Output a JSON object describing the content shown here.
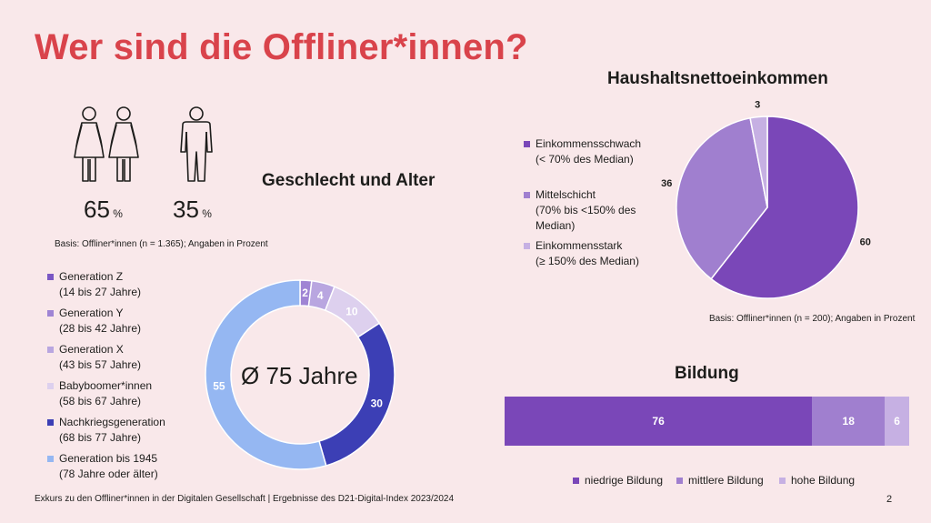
{
  "title": "Wer sind die Offliner*innen?",
  "gender": {
    "title": "Geschlecht und Alter",
    "female_value": "65",
    "male_value": "35",
    "unit": "%",
    "basis": "Basis: Offliner*innen (n = 1.365); Angaben in Prozent"
  },
  "age": {
    "center_label": "Ø 75 Jahre",
    "legend": [
      {
        "line1": "Generation Z",
        "line2": "(14 bis 27 Jahre)",
        "color": "#7a57c4"
      },
      {
        "line1": "Generation Y",
        "line2": "(28 bis 42 Jahre)",
        "color": "#9f84d4"
      },
      {
        "line1": "Generation X",
        "line2": "(43 bis 57 Jahre)",
        "color": "#b9a6e0"
      },
      {
        "line1": "Babyboomer*innen",
        "line2": "(58 bis 67 Jahre)",
        "color": "#ddd0ee"
      },
      {
        "line1": "Nachkriegsgeneration",
        "line2": "(68 bis 77 Jahre)",
        "color": "#3c3fb5"
      },
      {
        "line1": "Generation bis 1945",
        "line2": "(78 Jahre oder älter)",
        "color": "#95b7f2"
      }
    ]
  },
  "income": {
    "title": "Haushaltsnettoeinkommen",
    "legend": [
      {
        "lines": [
          "Einkommensschwach",
          "(< 70% des Median)"
        ],
        "color": "#7a47b8"
      },
      {
        "lines": [
          "Mittelschicht",
          "(70% bis <150% des",
          "Median)"
        ],
        "color": "#a07fcf"
      },
      {
        "lines": [
          "Einkommensstark",
          "(≥ 150% des Median)"
        ],
        "color": "#c6b0e3"
      }
    ],
    "basis": "Basis: Offliner*innen (n = 200); Angaben in Prozent"
  },
  "education": {
    "title": "Bildung",
    "legend": [
      "niedrige Bildung",
      "mittlere Bildung",
      "hohe Bildung"
    ]
  },
  "footer": "Exkurs zu den Offliner*innen in der Digitalen Gesellschaft | Ergebnisse des D21-Digital-Index 2023/2024",
  "page_number": "2",
  "chart_data": [
    {
      "type": "donut",
      "categories": [
        "Generation Z",
        "Generation Y",
        "Generation X",
        "Babyboomer*innen",
        "Nachkriegsgeneration",
        "Generation bis 1945"
      ],
      "values": [
        0,
        2,
        4,
        10,
        30,
        55
      ],
      "value_labels": [
        "",
        "2",
        "4",
        "10",
        "30",
        "55"
      ],
      "colors": [
        "#7a57c4",
        "#9f84d4",
        "#b9a6e0",
        "#ddd0ee",
        "#3c3fb5",
        "#95b7f2"
      ]
    },
    {
      "type": "pie",
      "categories": [
        "Einkommensschwach",
        "Mittelschicht",
        "Einkommensstark"
      ],
      "values": [
        60,
        36,
        3
      ],
      "colors": [
        "#7a47b8",
        "#a07fcf",
        "#c6b0e3"
      ]
    },
    {
      "type": "bar",
      "orientation": "horizontal-stacked",
      "categories": [
        "niedrige Bildung",
        "mittlere Bildung",
        "hohe Bildung"
      ],
      "values": [
        76,
        18,
        6
      ],
      "colors": [
        "#7a47b8",
        "#a07fcf",
        "#c6b0e3"
      ]
    }
  ]
}
